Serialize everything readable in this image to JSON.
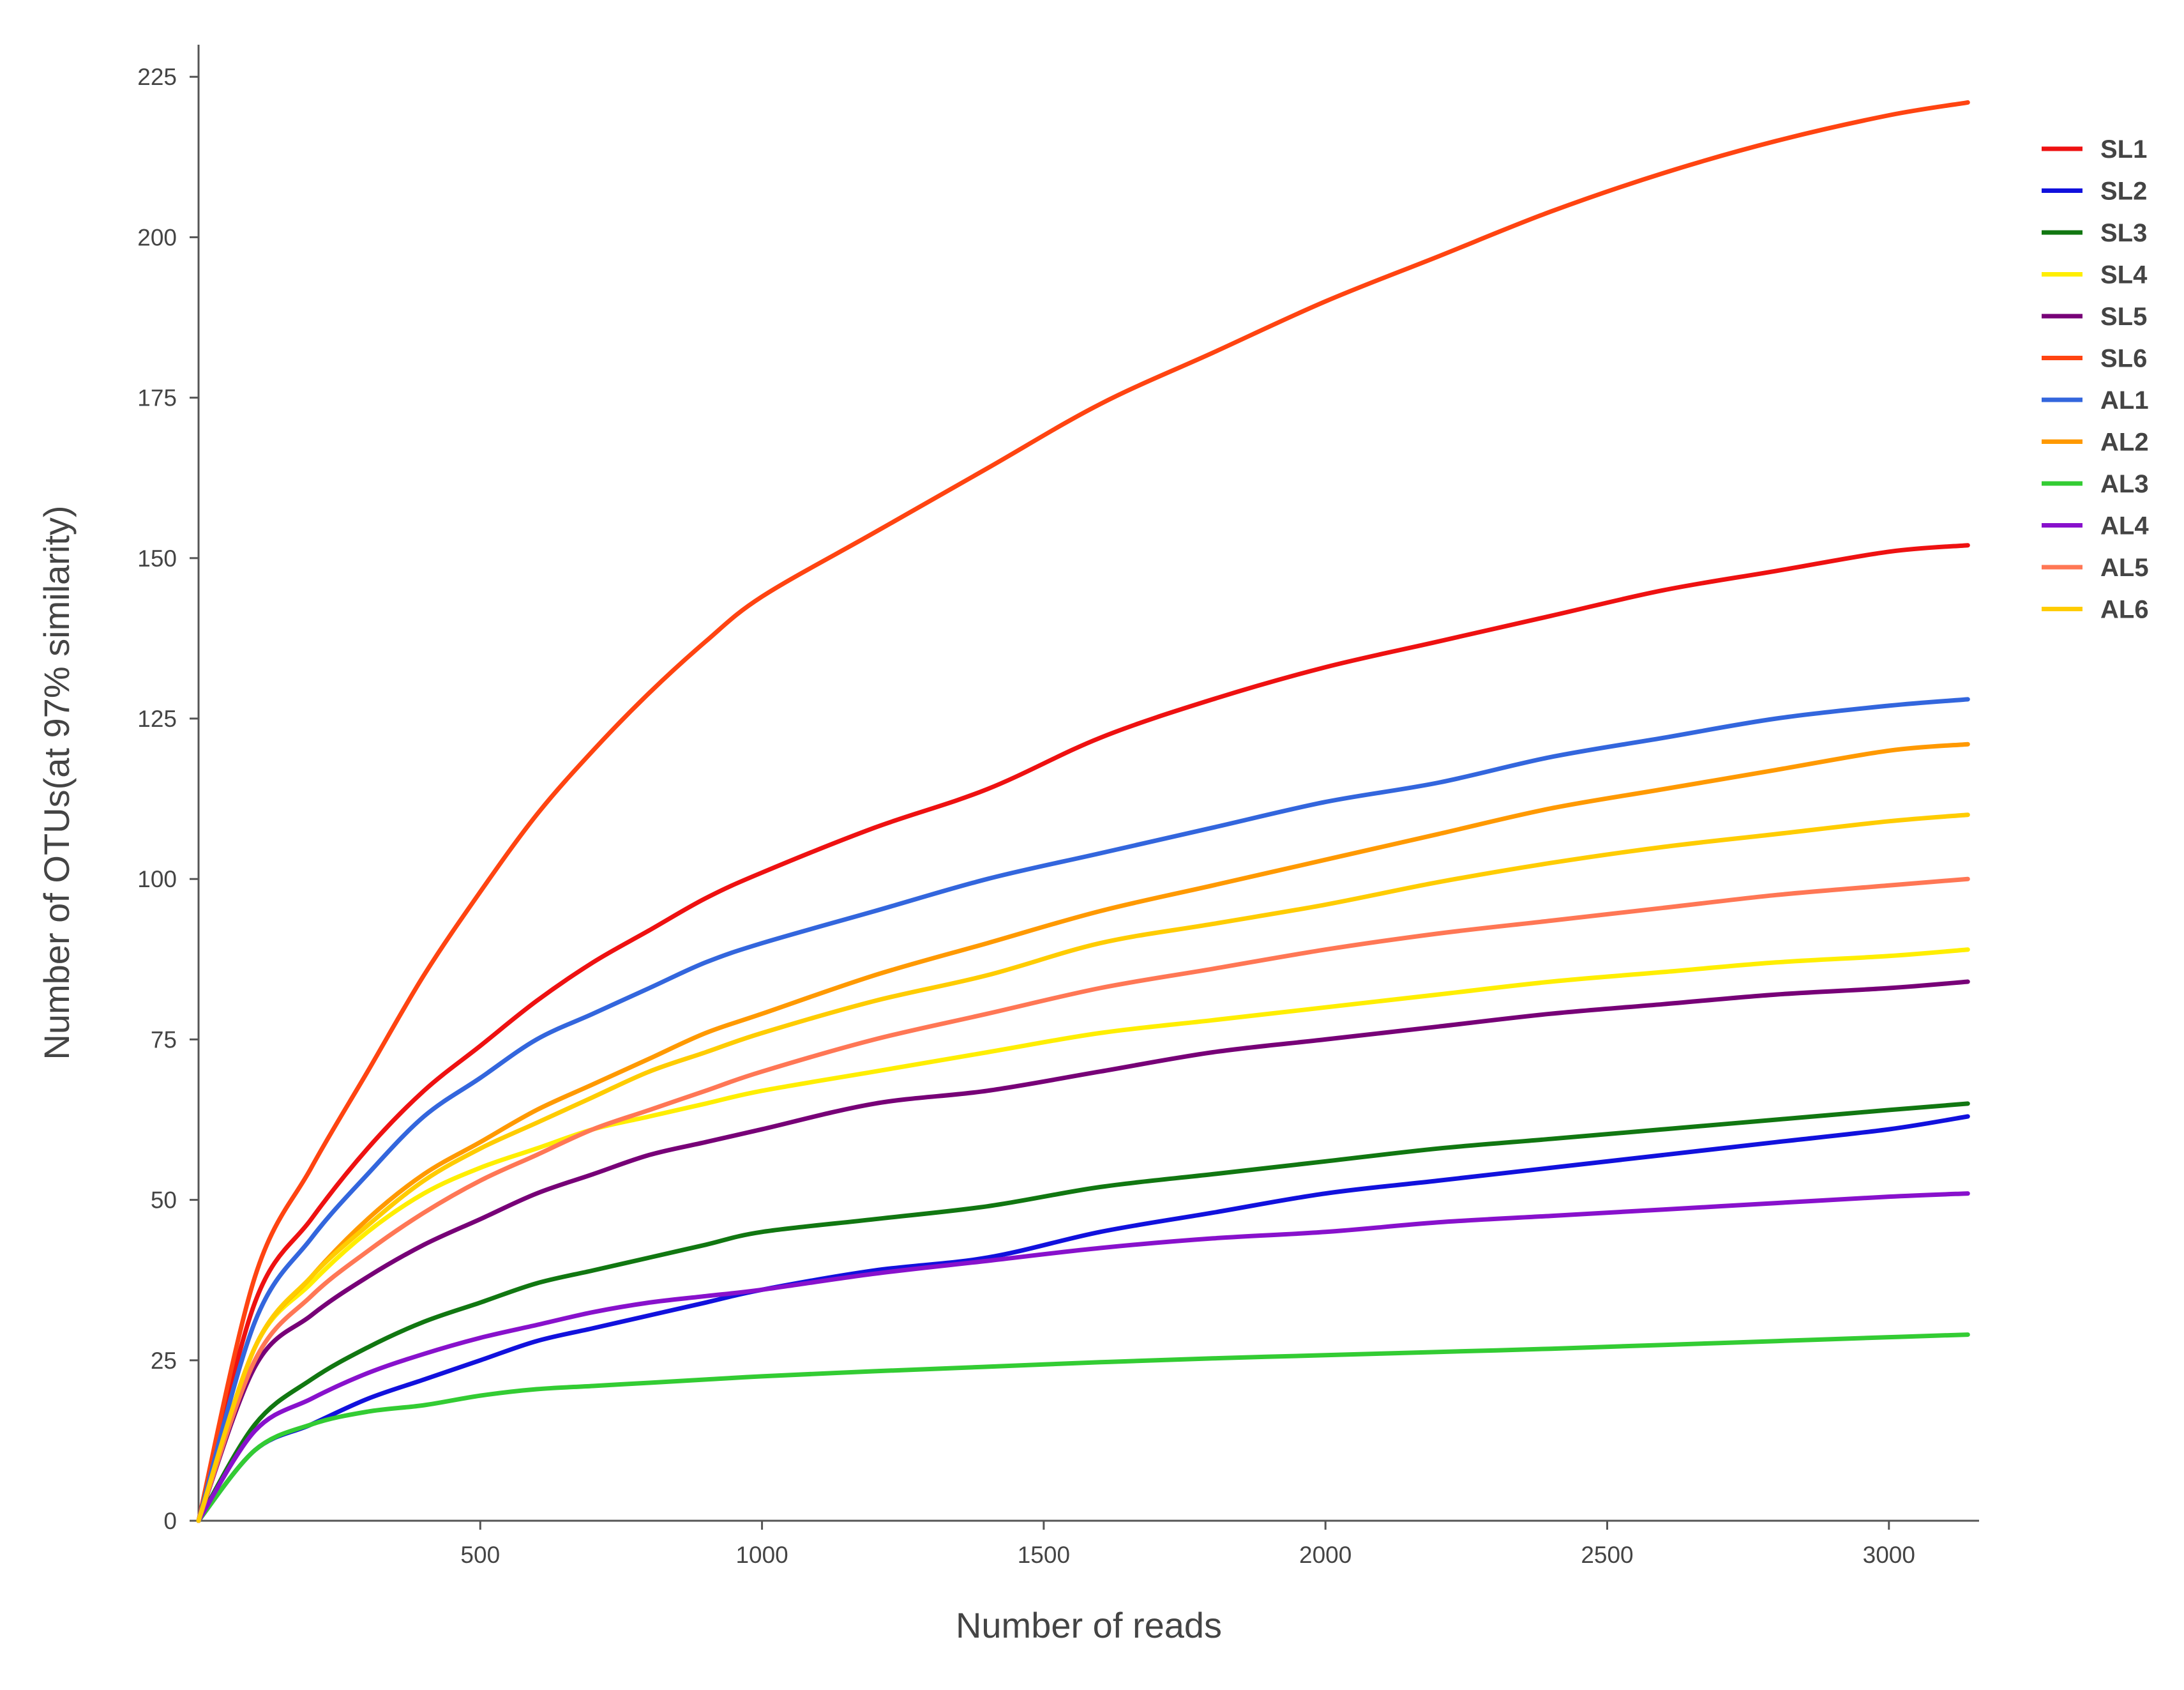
{
  "chart_data": {
    "type": "line",
    "title": "",
    "xlabel": "Number of reads",
    "ylabel": "Number of OTUs(at 97% similarity)",
    "xlim": [
      0,
      3160
    ],
    "ylim": [
      0,
      230
    ],
    "x_ticks": [
      500,
      1000,
      1500,
      2000,
      2500,
      3000
    ],
    "y_ticks": [
      0,
      25,
      50,
      75,
      100,
      125,
      150,
      175,
      200,
      225
    ],
    "grid": false,
    "legend_position": "right",
    "x": [
      0,
      100,
      200,
      300,
      400,
      500,
      600,
      700,
      800,
      900,
      1000,
      1200,
      1400,
      1600,
      1800,
      2000,
      2200,
      2400,
      2600,
      2800,
      3000,
      3140
    ],
    "series": [
      {
        "name": "SL1",
        "color": "#ee1111",
        "values": [
          0,
          34,
          47,
          58,
          67,
          74,
          81,
          87,
          92,
          97,
          101,
          108,
          114,
          122,
          128,
          133,
          137,
          141,
          145,
          148,
          151,
          152
        ]
      },
      {
        "name": "SL2",
        "color": "#1111dd",
        "values": [
          0,
          11,
          15,
          19,
          22,
          25,
          28,
          30,
          32,
          34,
          36,
          39,
          41,
          45,
          48,
          51,
          53,
          55,
          57,
          59,
          61,
          63
        ]
      },
      {
        "name": "SL3",
        "color": "#117711",
        "values": [
          0,
          15,
          22,
          27,
          31,
          34,
          37,
          39,
          41,
          43,
          45,
          47,
          49,
          52,
          54,
          56,
          58,
          59.5,
          61,
          62.5,
          64,
          65
        ]
      },
      {
        "name": "SL4",
        "color": "#ffee00",
        "values": [
          0,
          27,
          37,
          45,
          51,
          55,
          58,
          61,
          63,
          65,
          67,
          70,
          73,
          76,
          78,
          80,
          82,
          84,
          85.5,
          87,
          88,
          89
        ]
      },
      {
        "name": "SL5",
        "color": "#770077",
        "values": [
          0,
          24,
          32,
          38,
          43,
          47,
          51,
          54,
          57,
          59,
          61,
          65,
          67,
          70,
          73,
          75,
          77,
          79,
          80.5,
          82,
          83,
          84
        ]
      },
      {
        "name": "SL6",
        "color": "#ff4411",
        "values": [
          0,
          38,
          55,
          70,
          85,
          98,
          110,
          120,
          129,
          137,
          144,
          154,
          164,
          174,
          182,
          190,
          197,
          204,
          210,
          215,
          219,
          221
        ]
      },
      {
        "name": "AL1",
        "color": "#3366dd",
        "values": [
          0,
          31,
          44,
          54,
          63,
          69,
          75,
          79,
          83,
          87,
          90,
          95,
          100,
          104,
          108,
          112,
          115,
          119,
          122,
          125,
          127,
          128
        ]
      },
      {
        "name": "AL2",
        "color": "#ff9900",
        "values": [
          0,
          27,
          38,
          47,
          54,
          59,
          64,
          68,
          72,
          76,
          79,
          85,
          90,
          95,
          99,
          103,
          107,
          111,
          114,
          117,
          120,
          121
        ]
      },
      {
        "name": "AL3",
        "color": "#33cc33",
        "values": [
          0,
          11,
          15,
          17,
          18,
          19.5,
          20.5,
          21,
          21.5,
          22,
          22.5,
          23.3,
          24,
          24.7,
          25.3,
          25.8,
          26.3,
          26.8,
          27.4,
          28,
          28.6,
          29
        ]
      },
      {
        "name": "AL4",
        "color": "#8811cc",
        "values": [
          0,
          14,
          19,
          23,
          26,
          28.5,
          30.5,
          32.5,
          34,
          35,
          36,
          38.5,
          40.5,
          42.5,
          44,
          45,
          46.5,
          47.5,
          48.5,
          49.5,
          50.5,
          51
        ]
      },
      {
        "name": "AL5",
        "color": "#ff7755",
        "values": [
          0,
          25,
          35,
          42,
          48,
          53,
          57,
          61,
          64,
          67,
          70,
          75,
          79,
          83,
          86,
          89,
          91.5,
          93.5,
          95.5,
          97.5,
          99,
          100
        ]
      },
      {
        "name": "AL6",
        "color": "#ffcc00",
        "values": [
          0,
          27,
          38,
          46,
          53,
          58,
          62,
          66,
          70,
          73,
          76,
          81,
          85,
          90,
          93,
          96,
          99.5,
          102.5,
          105,
          107,
          109,
          110
        ]
      }
    ]
  }
}
